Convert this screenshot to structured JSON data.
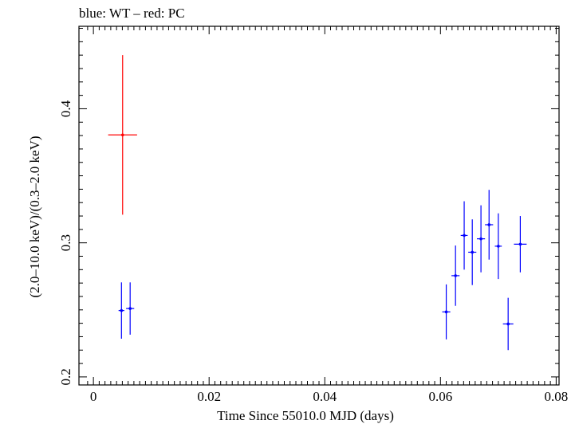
{
  "chart_data": {
    "type": "scatter",
    "title": "blue: WT – red: PC",
    "xlabel": "Time Since 55010.0 MJD (days)",
    "ylabel": "(2.0–10.0 keV)/(0.3–2.0 keV)",
    "xlim": [
      -0.0025,
      0.0805
    ],
    "ylim": [
      0.194,
      0.4615
    ],
    "x_ticks": [
      0,
      0.02,
      0.04,
      0.06,
      0.08
    ],
    "x_tick_labels": [
      "0",
      "0.02",
      "0.04",
      "0.06",
      "0.08"
    ],
    "y_ticks": [
      0.2,
      0.3,
      0.4
    ],
    "y_tick_labels": [
      "0.2",
      "0.3",
      "0.4"
    ],
    "series": [
      {
        "name": "WT",
        "color": "#0000ff",
        "points": [
          {
            "x": 0.00485,
            "xerr": 0.0005,
            "y": 0.2495,
            "yerr": 0.021
          },
          {
            "x": 0.00635,
            "xerr": 0.0007,
            "y": 0.251,
            "yerr": 0.0195
          },
          {
            "x": 0.061,
            "xerr": 0.0007,
            "y": 0.2485,
            "yerr": 0.0205
          },
          {
            "x": 0.0626,
            "xerr": 0.0007,
            "y": 0.2755,
            "yerr": 0.0225
          },
          {
            "x": 0.0641,
            "xerr": 0.0006,
            "y": 0.3055,
            "yerr": 0.0255
          },
          {
            "x": 0.0655,
            "xerr": 0.0007,
            "y": 0.293,
            "yerr": 0.0245
          },
          {
            "x": 0.067,
            "xerr": 0.0007,
            "y": 0.303,
            "yerr": 0.025
          },
          {
            "x": 0.0684,
            "xerr": 0.0007,
            "y": 0.3135,
            "yerr": 0.026
          },
          {
            "x": 0.07,
            "xerr": 0.0006,
            "y": 0.2975,
            "yerr": 0.0245
          },
          {
            "x": 0.0717,
            "xerr": 0.0009,
            "y": 0.2395,
            "yerr": 0.0195
          },
          {
            "x": 0.0738,
            "xerr": 0.0011,
            "y": 0.299,
            "yerr": 0.021
          }
        ]
      },
      {
        "name": "PC",
        "color": "#ff0000",
        "points": [
          {
            "x": 0.00505,
            "xerr": 0.0025,
            "y": 0.3805,
            "yerr": 0.0595
          }
        ]
      }
    ]
  }
}
